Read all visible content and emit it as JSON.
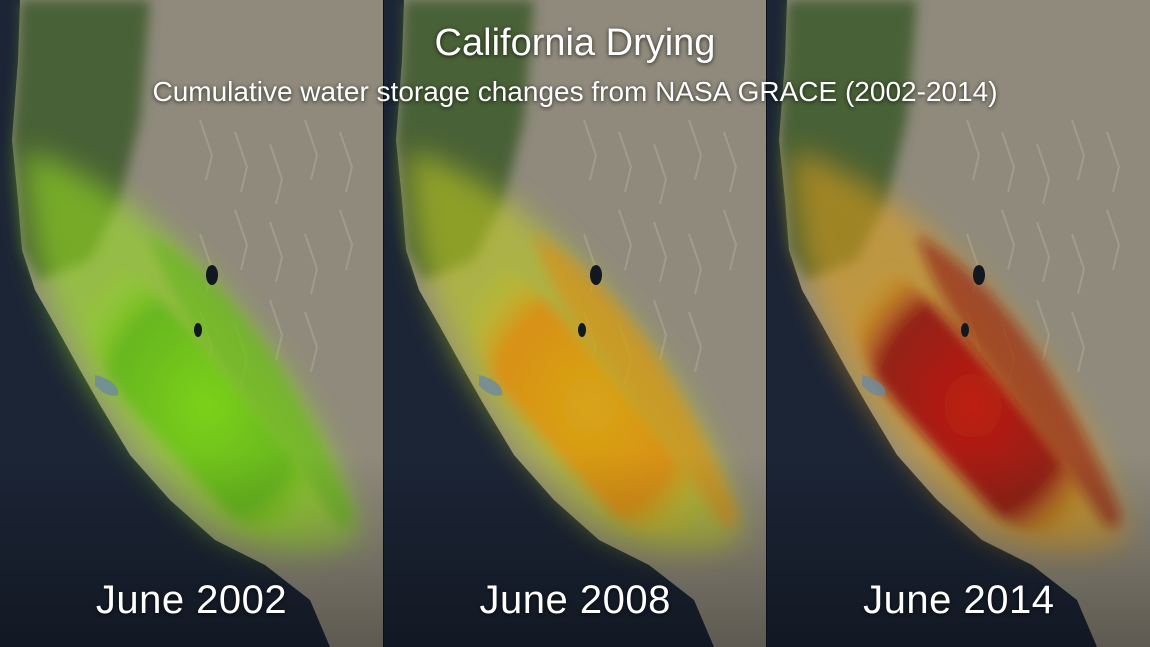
{
  "title": "California Drying",
  "subtitle": "Cumulative water storage changes from NASA GRACE (2002-2014)",
  "colors": {
    "ocean": "#1c2536",
    "land_terrain": "#8f8a7c",
    "forest": "#3d5a2a"
  },
  "panels": [
    {
      "label": "June 2002",
      "storage_colors": [
        "#7bd31a",
        "#5fb515",
        "#9be61e"
      ]
    },
    {
      "label": "June 2008",
      "storage_colors": [
        "#d9a514",
        "#e08a10",
        "#c6d31a"
      ]
    },
    {
      "label": "June 2014",
      "storage_colors": [
        "#c0160e",
        "#8a0c08",
        "#e6a214"
      ]
    }
  ]
}
